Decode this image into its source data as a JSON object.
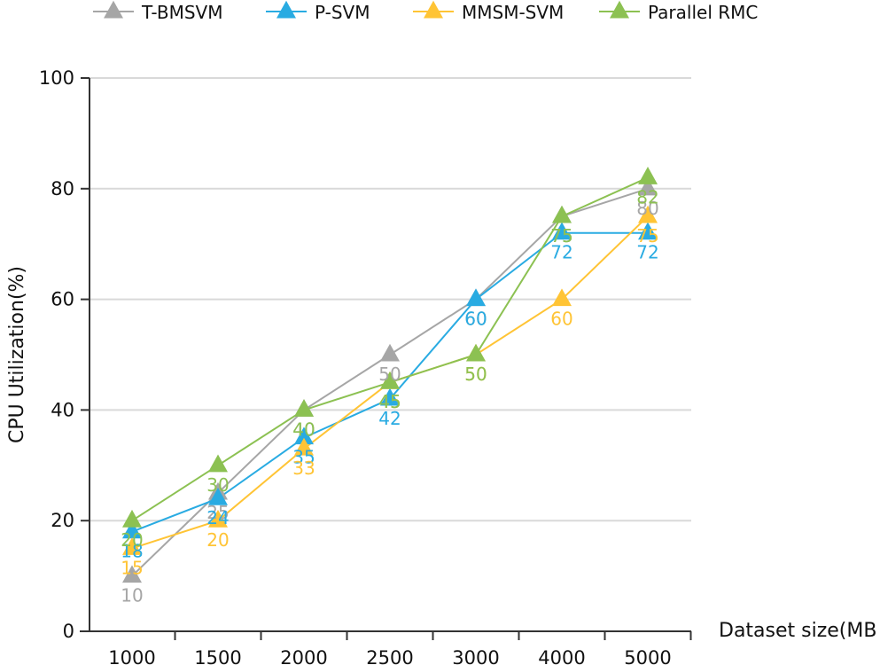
{
  "chart_data": {
    "type": "line",
    "title": "",
    "xlabel": "Dataset size(MB",
    "ylabel": "CPU Utilization(%)",
    "categories": [
      "1000",
      "1500",
      "2000",
      "2500",
      "3000",
      "4000",
      "5000"
    ],
    "ylim": [
      0,
      100
    ],
    "yticks": [
      0,
      20,
      40,
      60,
      80,
      100
    ],
    "grid": "horizontal",
    "legend_position": "top",
    "series": [
      {
        "name": "T-BMSVM",
        "color": "#a6a6a6",
        "values": [
          10,
          25,
          40,
          50,
          60,
          75,
          80
        ]
      },
      {
        "name": "P-SVM",
        "color": "#29abe2",
        "values": [
          18,
          24,
          35,
          42,
          60,
          72,
          72
        ]
      },
      {
        "name": "MMSM-SVM",
        "color": "#ffc435",
        "values": [
          15,
          20,
          33,
          45,
          50,
          60,
          75
        ]
      },
      {
        "name": "Parallel RMC",
        "color": "#8cc152",
        "values": [
          20,
          30,
          40,
          45,
          50,
          75,
          82
        ]
      }
    ]
  }
}
